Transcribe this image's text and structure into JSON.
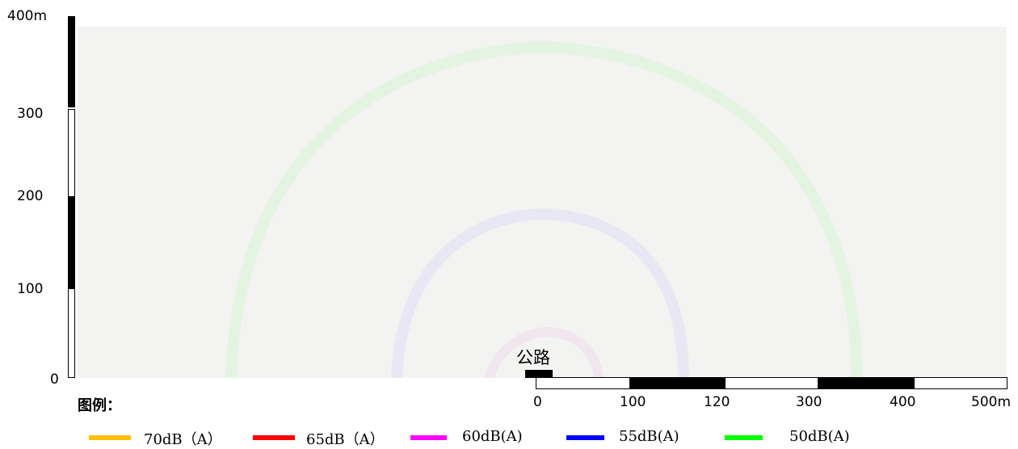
{
  "map": {
    "y_axis": {
      "ticks": [
        "400m",
        "300",
        "200",
        "100",
        "0"
      ]
    },
    "x_axis": {
      "ticks": [
        "0",
        "100",
        "120",
        "300",
        "400",
        "500m"
      ]
    },
    "road_label": "公路",
    "background_color": "#f3f3f2"
  },
  "legend": {
    "title": "图例：",
    "items": [
      {
        "label": "70dB（A）",
        "color": "#ffc000"
      },
      {
        "label": "65dB（A）",
        "color": "#ff0000"
      },
      {
        "label": "60dB(A)",
        "color": "#ff00ff"
      },
      {
        "label": "55dB(A)",
        "color": "#0000ff"
      },
      {
        "label": "50dB(A)",
        "color": "#00ff00"
      }
    ]
  }
}
